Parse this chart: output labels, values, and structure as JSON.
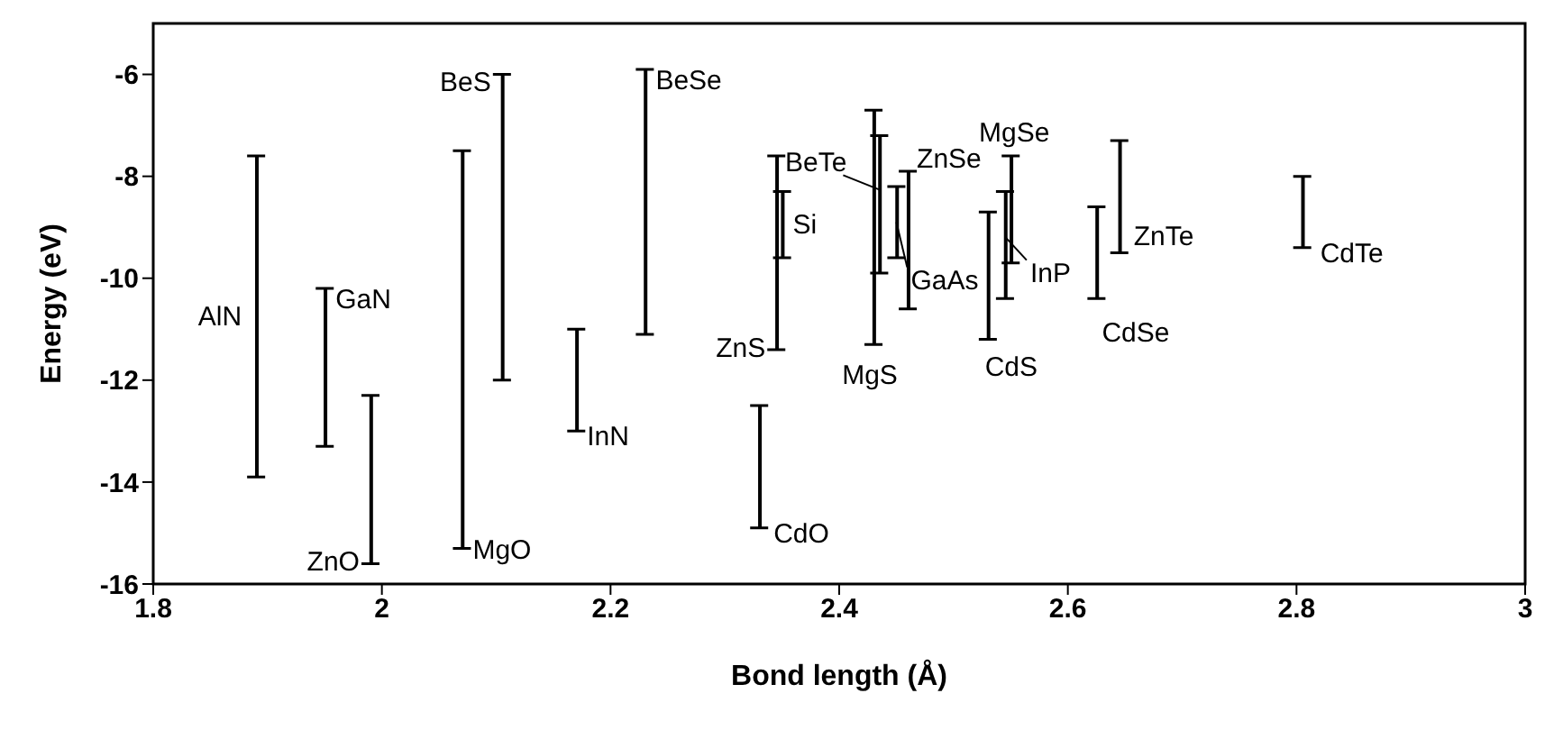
{
  "chart_data": {
    "type": "bar",
    "xlabel": "Bond length (Å)",
    "ylabel": "Energy (eV)",
    "color": "#000000",
    "x": [
      1.89,
      1.95,
      1.99,
      2.07,
      2.105,
      2.17,
      2.23,
      2.33,
      2.345,
      2.35,
      2.43,
      2.435,
      2.45,
      2.46,
      2.53,
      2.545,
      2.55,
      2.625,
      2.645,
      2.805
    ],
    "base": [
      -13.9,
      -13.3,
      -15.6,
      -15.3,
      -12.0,
      -13.0,
      -11.1,
      -14.9,
      -11.4,
      -9.6,
      -11.3,
      -9.9,
      -9.6,
      -10.6,
      -11.2,
      -10.4,
      -9.7,
      -10.4,
      -9.5,
      -9.4
    ],
    "values": [
      6.3,
      3.1,
      3.3,
      7.8,
      6.0,
      2.0,
      5.2,
      2.4,
      3.8,
      1.3,
      4.6,
      2.7,
      1.4,
      2.7,
      2.5,
      2.1,
      2.1,
      1.8,
      2.2,
      1.4
    ],
    "xlim": [
      1.8,
      3
    ],
    "ylim": [
      -16,
      -5
    ],
    "xticks": [
      1.8,
      2,
      2.2,
      2.4,
      2.6,
      2.8,
      3
    ],
    "yticks": [
      -16,
      -14,
      -12,
      -10,
      -8,
      -6
    ],
    "annotations": [
      "AlN",
      {
        "text": "GaN",
        "x": 1.95,
        "y": -10.2
      },
      {
        "text": "ZnO",
        "x": 1.99,
        "y": -15.6
      },
      {
        "text": "MgO",
        "x": 2.07,
        "y": -15.3
      },
      {
        "text": "BeS",
        "x": 2.105,
        "y": -6.0
      },
      {
        "text": "InN",
        "x": 2.17,
        "y": -13.0
      },
      {
        "text": "BeSe",
        "x": 2.23,
        "y": -5.9
      },
      {
        "text": "CdO",
        "x": 2.33,
        "y": -14.9
      },
      {
        "text": "ZnS",
        "x": 2.345,
        "y": -11.4
      },
      {
        "text": "Si",
        "x": 2.35,
        "y": -8.3
      },
      {
        "text": "MgS",
        "x": 2.43,
        "y": -11.3
      },
      {
        "text": "BeTe",
        "x": 2.435,
        "y": -7.2
      },
      "GaAs",
      {
        "text": "ZnSe",
        "x": 2.46,
        "y": -7.9
      },
      {
        "text": "CdS",
        "x": 2.53,
        "y": -11.2
      },
      {
        "text": "InP",
        "x": 2.545,
        "y": -8.3
      },
      {
        "text": "MgSe",
        "x": 2.55,
        "y": -7.6
      },
      {
        "text": "CdSe",
        "x": 2.625,
        "y": -10.4
      },
      {
        "text": "ZnTe",
        "x": 2.645,
        "y": -9.5
      },
      {
        "text": "CdTe",
        "x": 2.805,
        "y": -9.4
      }
    ]
  }
}
